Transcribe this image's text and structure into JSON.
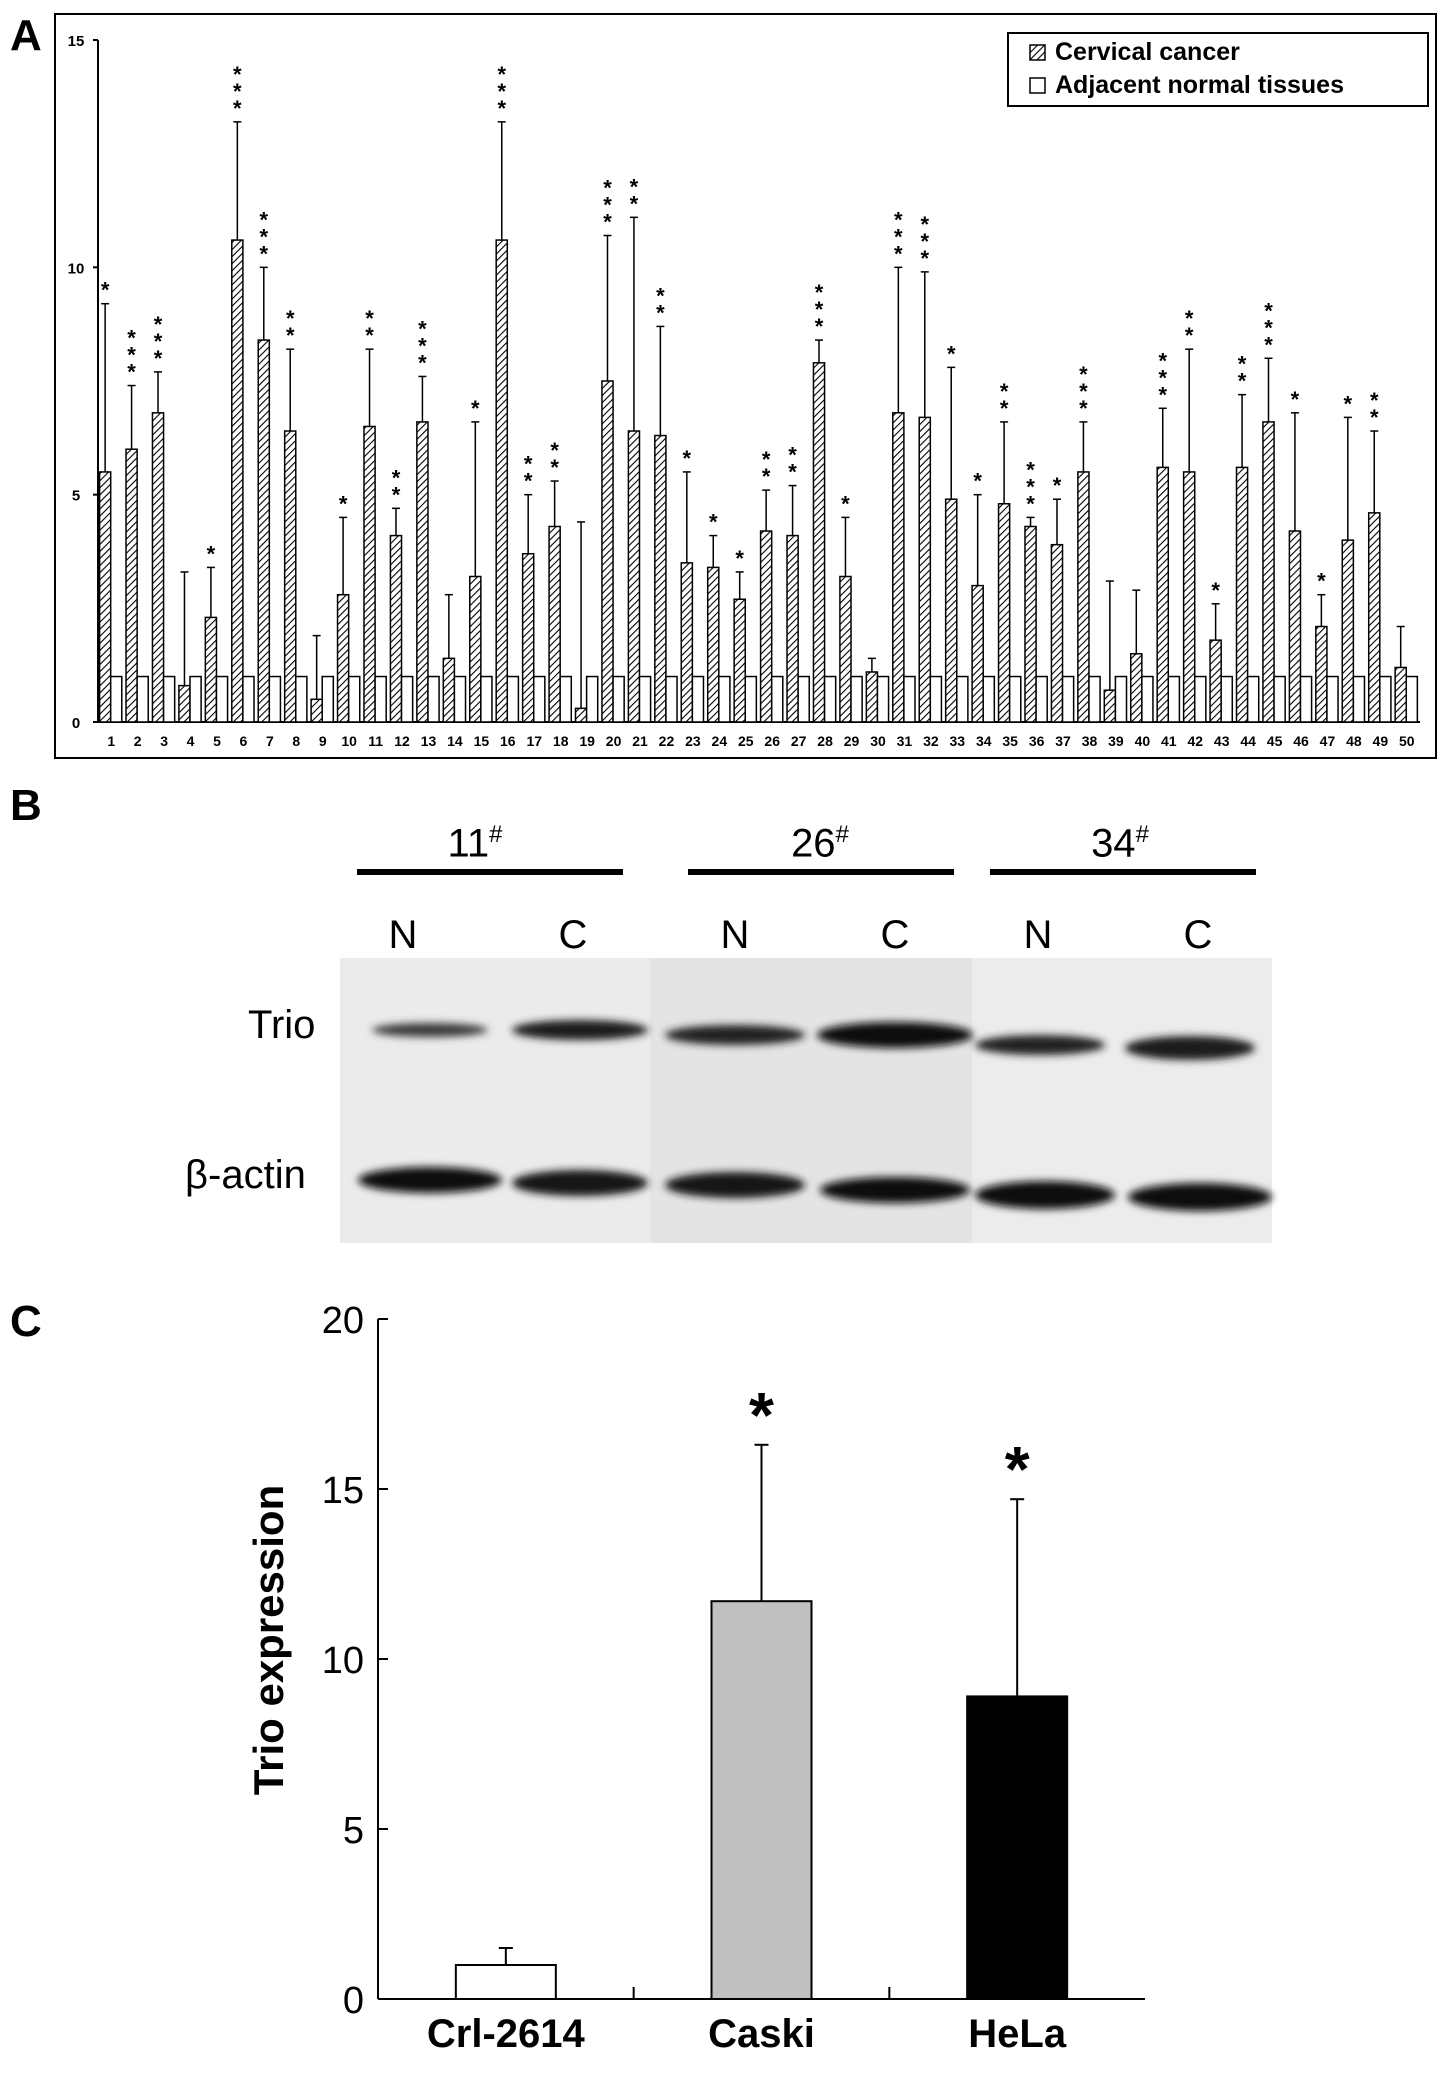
{
  "panels": {
    "a": "A",
    "b": "B",
    "c": "C"
  },
  "chart_data": [
    {
      "type": "bar",
      "panel": "A",
      "ylim": [
        0,
        15
      ],
      "yticks": [
        "0",
        "5",
        "10",
        "15"
      ],
      "categories": [
        "1",
        "2",
        "3",
        "4",
        "5",
        "6",
        "7",
        "8",
        "9",
        "10",
        "11",
        "12",
        "13",
        "14",
        "15",
        "16",
        "17",
        "18",
        "19",
        "20",
        "21",
        "22",
        "23",
        "24",
        "25",
        "26",
        "27",
        "28",
        "29",
        "30",
        "31",
        "32",
        "33",
        "34",
        "35",
        "36",
        "37",
        "38",
        "39",
        "40",
        "41",
        "42",
        "43",
        "44",
        "45",
        "46",
        "47",
        "48",
        "49",
        "50"
      ],
      "series": [
        {
          "name": "Cervical cancer",
          "pattern": "hatched",
          "values": [
            5.5,
            6.0,
            6.8,
            0.8,
            2.3,
            10.6,
            8.4,
            6.4,
            0.5,
            2.8,
            6.5,
            4.1,
            6.6,
            1.4,
            3.2,
            10.6,
            3.7,
            4.3,
            0.3,
            7.5,
            6.4,
            6.3,
            3.5,
            3.4,
            2.7,
            4.2,
            4.1,
            7.9,
            3.2,
            1.1,
            6.8,
            6.7,
            4.9,
            3.0,
            4.8,
            4.3,
            3.9,
            5.5,
            0.7,
            1.5,
            5.6,
            5.5,
            1.8,
            5.6,
            6.6,
            4.2,
            2.1,
            4.0,
            4.6,
            1.2
          ],
          "errors": [
            3.7,
            1.4,
            0.9,
            2.5,
            1.1,
            2.6,
            1.6,
            1.8,
            1.4,
            1.7,
            1.7,
            0.6,
            1.0,
            1.4,
            3.4,
            2.6,
            1.3,
            1.0,
            4.1,
            3.2,
            4.7,
            2.4,
            2.0,
            0.7,
            0.6,
            0.9,
            1.1,
            0.5,
            1.3,
            0.3,
            3.2,
            3.2,
            2.9,
            2.0,
            1.8,
            0.2,
            1.0,
            1.1,
            2.4,
            1.4,
            1.3,
            2.7,
            0.8,
            1.6,
            1.4,
            2.6,
            0.7,
            2.7,
            1.8,
            0.9
          ],
          "stars": [
            "*",
            "***",
            "***",
            "",
            "*",
            "***",
            "***",
            "**",
            "",
            "*",
            "**",
            "**",
            "***",
            "",
            "*",
            "***",
            "**",
            "**",
            "",
            "***",
            "**",
            "**",
            "*",
            "*",
            "*",
            "**",
            "**",
            "***",
            "*",
            "",
            "***",
            "***",
            "*",
            "*",
            "**",
            "***",
            "*",
            "***",
            "",
            "",
            "***",
            "**",
            "*",
            "**",
            "***",
            "*",
            "*",
            "*",
            "**",
            ""
          ]
        },
        {
          "name": "Adjacent normal tissues",
          "pattern": "open",
          "values": [
            1,
            1,
            1,
            1,
            1,
            1,
            1,
            1,
            1,
            1,
            1,
            1,
            1,
            1,
            1,
            1,
            1,
            1,
            1,
            1,
            1,
            1,
            1,
            1,
            1,
            1,
            1,
            1,
            1,
            1,
            1,
            1,
            1,
            1,
            1,
            1,
            1,
            1,
            1,
            1,
            1,
            1,
            1,
            1,
            1,
            1,
            1,
            1,
            1,
            1
          ]
        }
      ]
    },
    {
      "type": "bar",
      "panel": "C",
      "ylabel": "Trio expression",
      "ylim": [
        0,
        20
      ],
      "yticks": [
        "0",
        "5",
        "10",
        "15",
        "20"
      ],
      "categories": [
        "Crl-2614",
        "Caski",
        "HeLa"
      ],
      "values": [
        1.0,
        11.7,
        8.9
      ],
      "errors": [
        0.5,
        4.6,
        5.8
      ],
      "colors": [
        "#ffffff",
        "#c0c0c0",
        "#000000"
      ],
      "stars": [
        "",
        "*",
        "*"
      ]
    }
  ],
  "blot": {
    "groups": [
      {
        "id": "11",
        "sup": "#"
      },
      {
        "id": "26",
        "sup": "#"
      },
      {
        "id": "34",
        "sup": "#"
      }
    ],
    "lanes": [
      "N",
      "C",
      "N",
      "C",
      "N",
      "C"
    ],
    "rows": [
      "Trio",
      "β-actin"
    ]
  },
  "colors": {
    "hatch": "#000000",
    "blot_background": "#ececec",
    "band": "#1a1a1a"
  }
}
